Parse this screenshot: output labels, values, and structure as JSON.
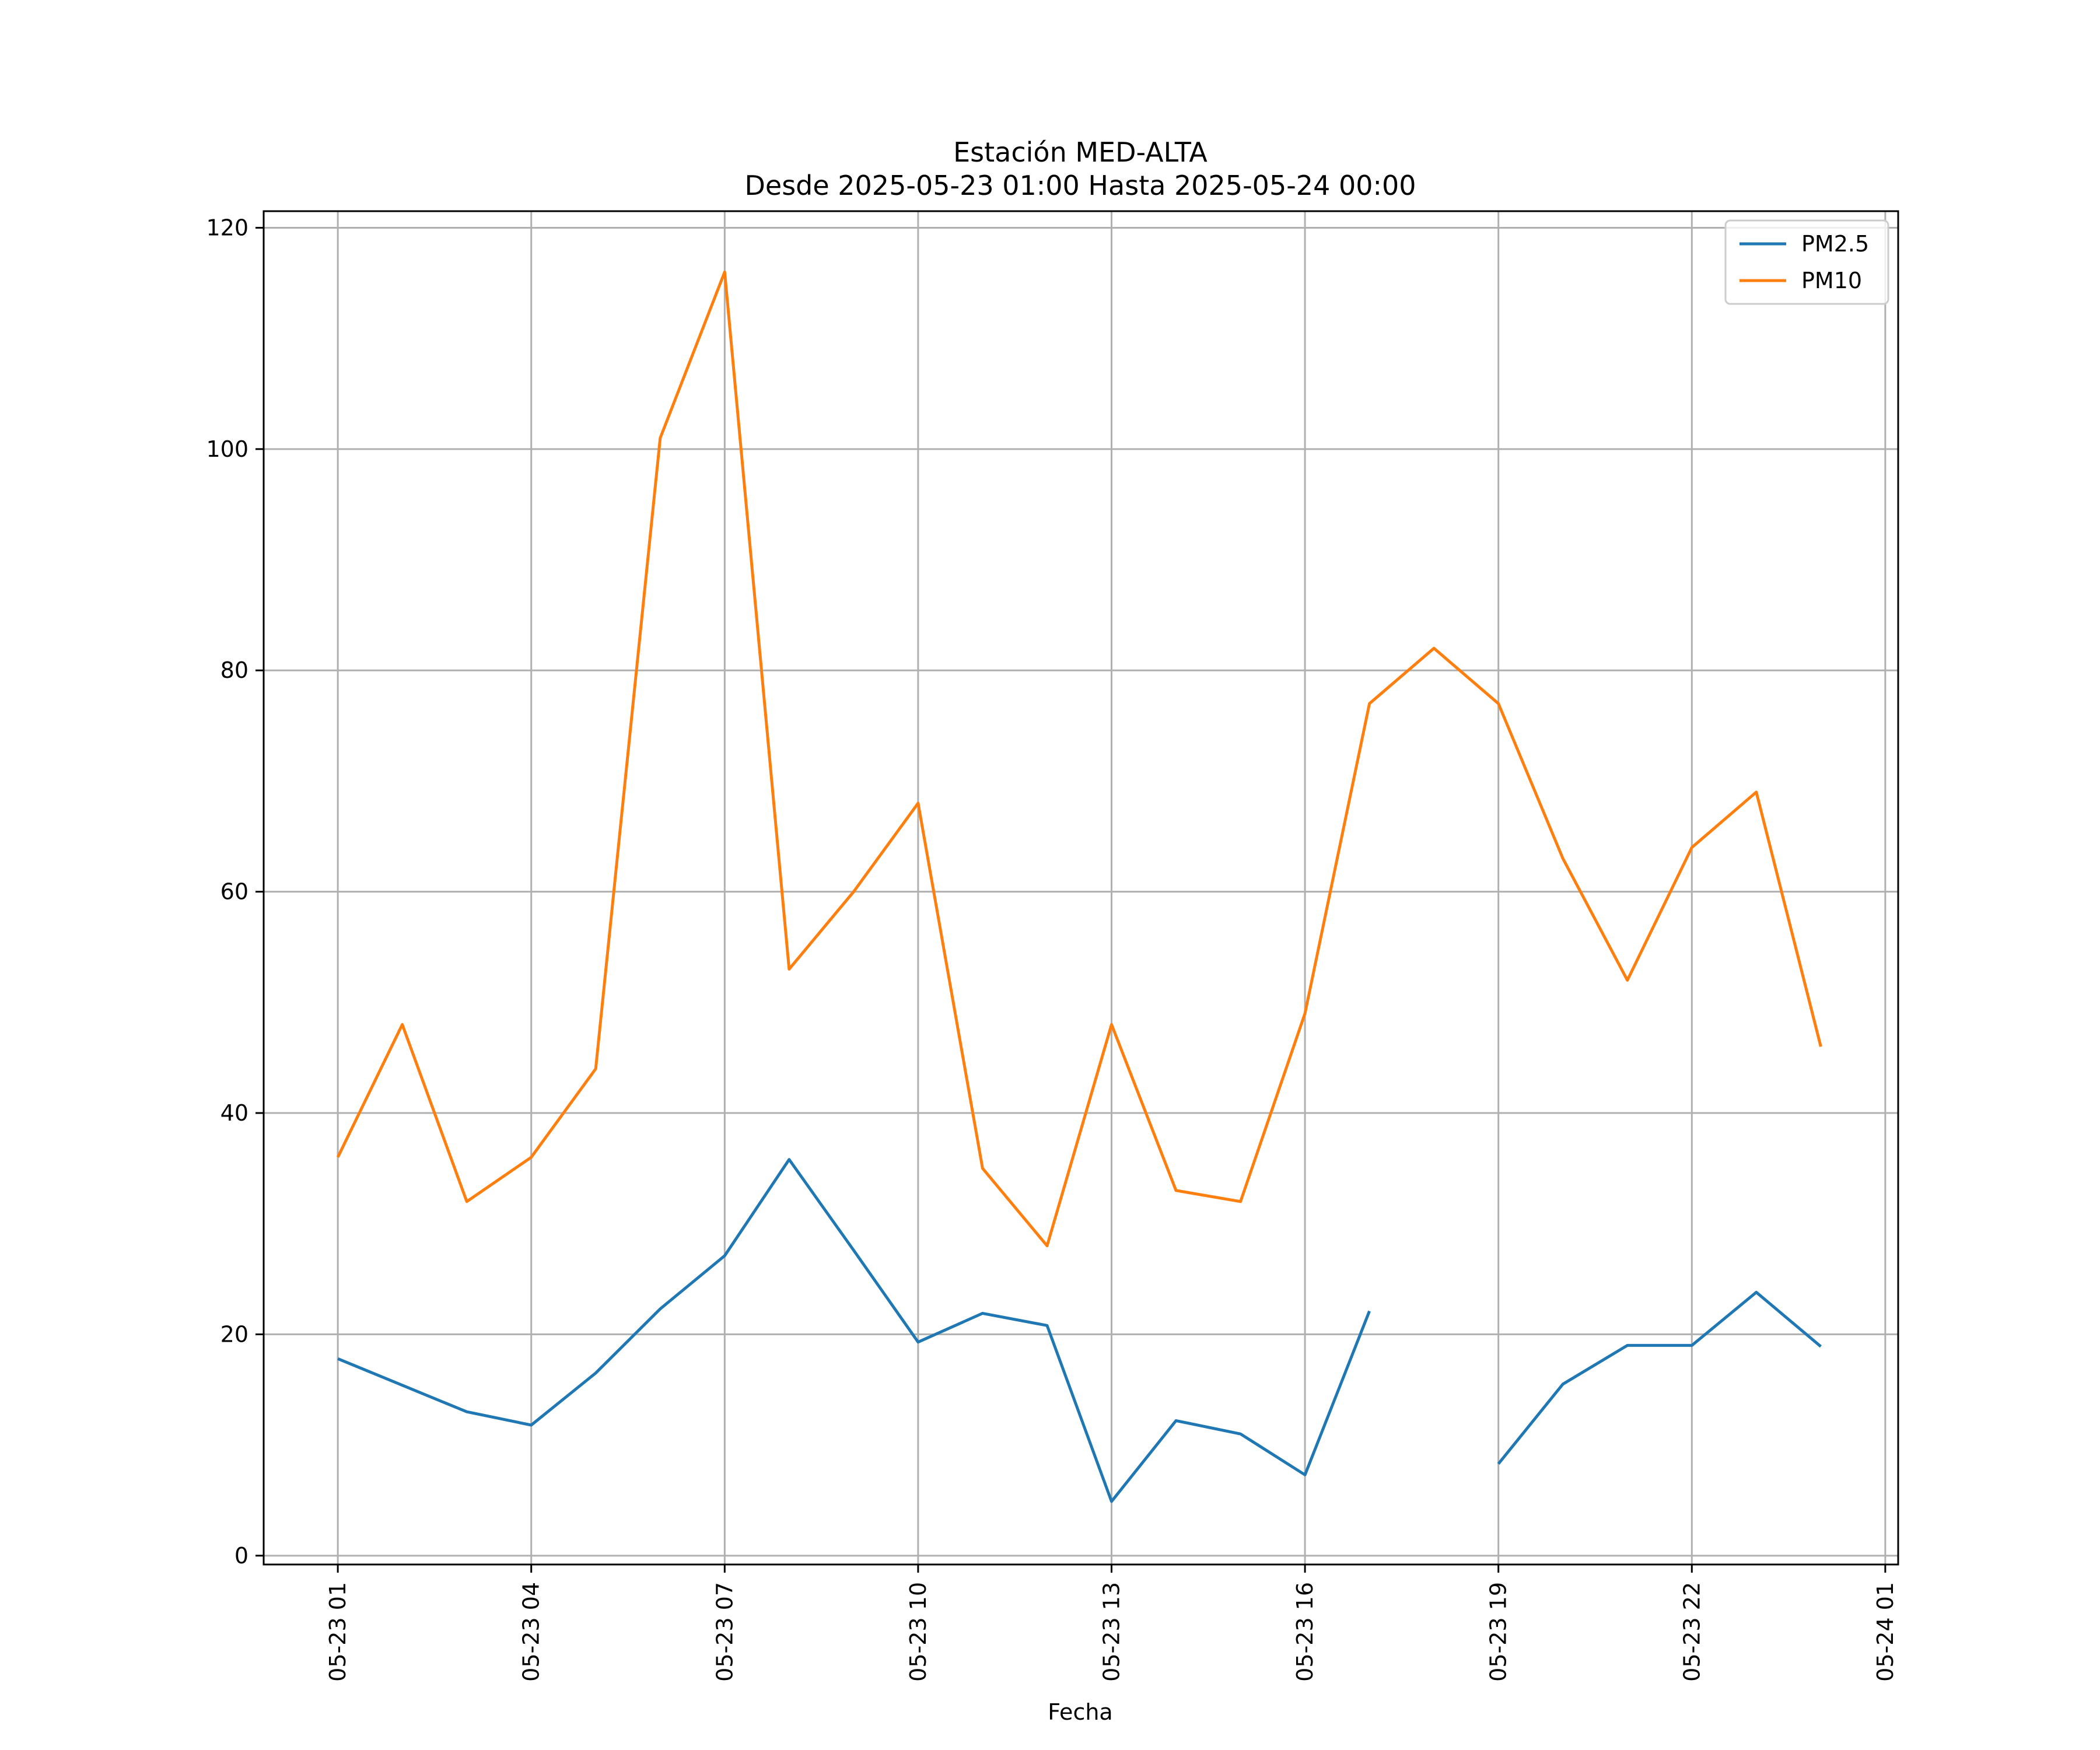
{
  "chart_data": {
    "type": "line",
    "title": "Estación MED-ALTA",
    "subtitle": "Desde 2025-05-23 01:00 Hasta 2025-05-24 00:00",
    "xlabel": "Fecha",
    "ylabel": "",
    "x_ticks": [
      "05-23 01",
      "05-23 04",
      "05-23 07",
      "05-23 10",
      "05-23 13",
      "05-23 16",
      "05-23 19",
      "05-23 22",
      "05-24 01"
    ],
    "x_tick_hours": [
      1,
      4,
      7,
      10,
      13,
      16,
      19,
      22,
      25
    ],
    "y_ticks": [
      0,
      20,
      40,
      60,
      80,
      100,
      120
    ],
    "xlim": [
      -0.15,
      25.2
    ],
    "ylim": [
      -0.8,
      121.5
    ],
    "grid": true,
    "legend_position": "top-right",
    "x": [
      1,
      2,
      3,
      4,
      5,
      6,
      7,
      8,
      9,
      10,
      11,
      12,
      13,
      14,
      15,
      16,
      17,
      18,
      19,
      20,
      21,
      22,
      23,
      24
    ],
    "series": [
      {
        "name": "PM2.5",
        "color": "#1f77b4",
        "values": [
          17.8,
          15.4,
          13.0,
          11.8,
          16.5,
          22.3,
          27.1,
          35.8,
          27.6,
          19.3,
          21.9,
          20.8,
          4.9,
          12.2,
          11.0,
          7.3,
          22.1,
          null,
          8.3,
          15.5,
          19.0,
          19.0,
          23.8,
          18.9
        ]
      },
      {
        "name": "PM10",
        "color": "#ff7f0e",
        "values": [
          36,
          48,
          32,
          36,
          44,
          101,
          116,
          53,
          60,
          68,
          35,
          28,
          48,
          33,
          32,
          49,
          77,
          82,
          77,
          63,
          52,
          64,
          69,
          46
        ]
      }
    ]
  }
}
